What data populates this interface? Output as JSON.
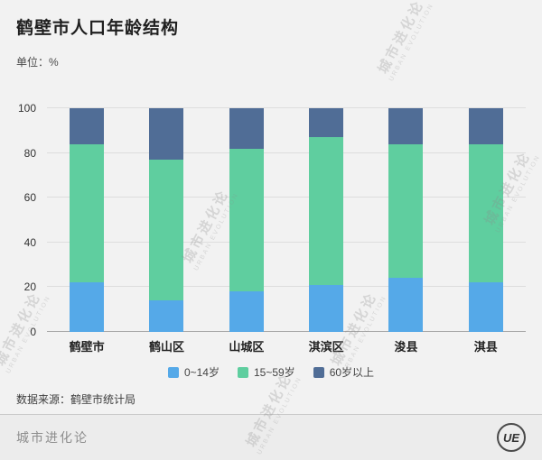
{
  "header": {
    "title": "鹤壁市人口年龄结构",
    "unit_label": "单位：%"
  },
  "source_note": "数据来源：鹤壁市统计局",
  "footer": {
    "brand": "城市进化论",
    "logo_text": "UE"
  },
  "watermark": {
    "cn": "城市进化论",
    "en": "URBAN EVOLUTION"
  },
  "chart_data": {
    "type": "bar",
    "stacked": true,
    "title": "鹤壁市人口年龄结构",
    "unit": "%",
    "categories": [
      "鹤壁市",
      "鹤山区",
      "山城区",
      "淇滨区",
      "浚县",
      "淇县"
    ],
    "series": [
      {
        "name": "0~14岁",
        "color": "#55a9e8",
        "values": [
          22,
          14,
          18,
          21,
          24,
          22
        ]
      },
      {
        "name": "15~59岁",
        "color": "#5fce9f",
        "values": [
          62,
          63,
          64,
          66,
          60,
          62
        ]
      },
      {
        "name": "60岁以上",
        "color": "#506d96",
        "values": [
          16,
          23,
          18,
          13,
          16,
          16
        ]
      }
    ],
    "xlabel": "",
    "ylabel": "",
    "ylim": [
      0,
      100
    ],
    "yticks": [
      0,
      20,
      40,
      60,
      80,
      100
    ],
    "grid": true,
    "legend_position": "bottom"
  }
}
